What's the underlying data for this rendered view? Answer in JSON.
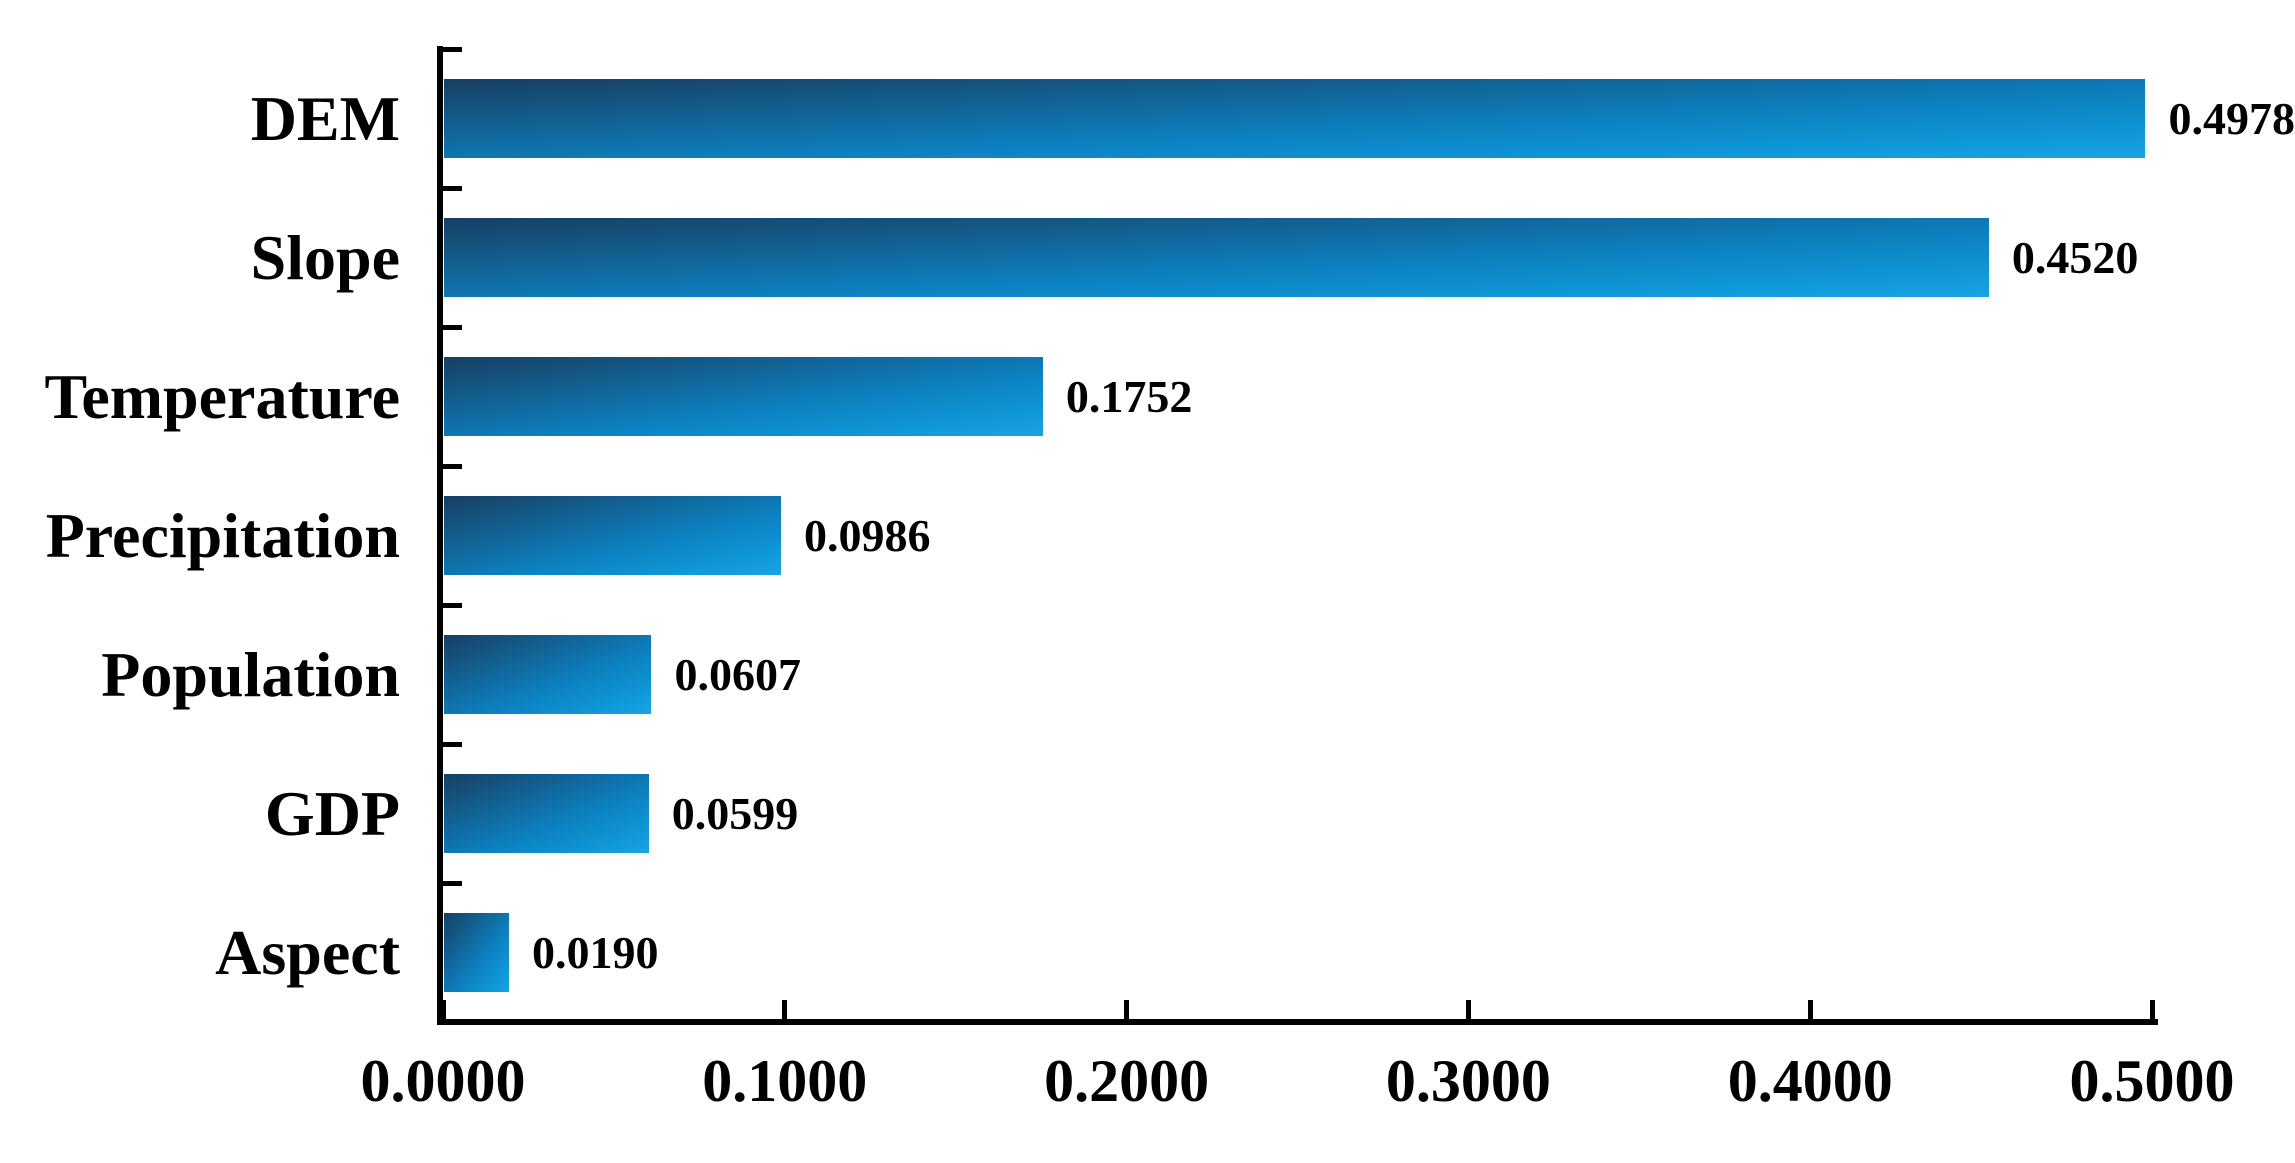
{
  "chart_data": {
    "type": "bar",
    "orientation": "horizontal",
    "title": "",
    "xlabel": "",
    "ylabel": "",
    "categories": [
      "DEM",
      "Slope",
      "Temperature",
      "Precipitation",
      "Population",
      "GDP",
      "Aspect"
    ],
    "values": [
      0.4978,
      0.452,
      0.1752,
      0.0986,
      0.0607,
      0.0599,
      0.019
    ],
    "value_labels": [
      "0.4978",
      "0.4520",
      "0.1752",
      "0.0986",
      "0.0607",
      "0.0599",
      "0.0190"
    ],
    "xlim": [
      0.0,
      0.5
    ],
    "x_ticks": [
      0.0,
      0.1,
      0.2,
      0.3,
      0.4,
      0.5
    ],
    "x_tick_labels": [
      "0.0000",
      "0.1000",
      "0.2000",
      "0.3000",
      "0.4000",
      "0.5000"
    ],
    "grid": false,
    "legend": false,
    "bar_gradient_colors": [
      "#173f63",
      "#0d7fbe",
      "#1ba4e4"
    ],
    "axis_color": "#000000",
    "text_color": "#000000",
    "background_color": "#ffffff"
  }
}
